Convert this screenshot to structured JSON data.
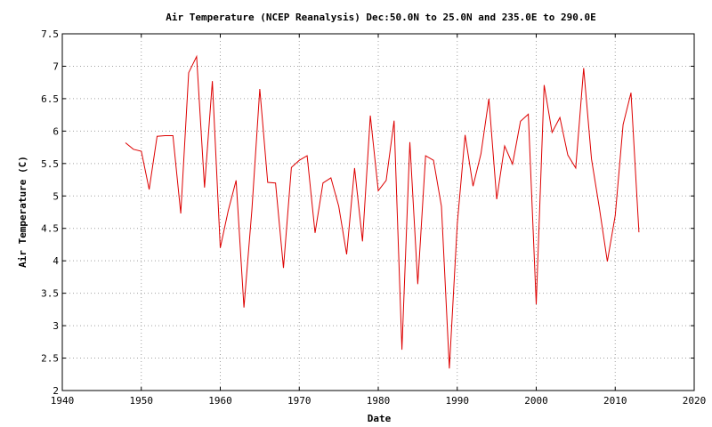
{
  "chart_data": {
    "type": "line",
    "title": "Air Temperature (NCEP Reanalysis) Dec:50.0N to 25.0N and 235.0E to 290.0E",
    "xlabel": "Date",
    "ylabel": "Air Temperature (C)",
    "xlim": [
      1940,
      2020
    ],
    "ylim": [
      2,
      7.5
    ],
    "xticks": [
      1940,
      1950,
      1960,
      1970,
      1980,
      1990,
      2000,
      2010,
      2020
    ],
    "yticks": [
      2,
      2.5,
      3,
      3.5,
      4,
      4.5,
      5,
      5.5,
      6,
      6.5,
      7,
      7.5
    ],
    "ytick_labels": [
      "2",
      "2.5",
      "3",
      "3.5",
      "4",
      "4.5",
      "5",
      "5.5",
      "6",
      "6.5",
      "7",
      "7.5"
    ],
    "grid": true,
    "legend": "none",
    "series": [
      {
        "color": "#dd0000",
        "x": [
          1948,
          1949,
          1950,
          1951,
          1952,
          1953,
          1954,
          1955,
          1956,
          1957,
          1958,
          1959,
          1960,
          1961,
          1962,
          1963,
          1964,
          1965,
          1966,
          1967,
          1968,
          1969,
          1970,
          1971,
          1972,
          1973,
          1974,
          1975,
          1976,
          1977,
          1978,
          1979,
          1980,
          1981,
          1982,
          1983,
          1984,
          1985,
          1986,
          1987,
          1988,
          1989,
          1990,
          1991,
          1992,
          1993,
          1994,
          1995,
          1996,
          1997,
          1998,
          1999,
          2000,
          2001,
          2002,
          2003,
          2004,
          2005,
          2006,
          2007,
          2008,
          2009,
          2010,
          2011,
          2012,
          2013
        ],
        "y": [
          5.82,
          5.72,
          5.69,
          5.1,
          5.92,
          5.93,
          5.93,
          4.73,
          6.9,
          7.15,
          5.13,
          6.77,
          4.2,
          4.77,
          5.24,
          3.28,
          4.78,
          6.65,
          5.21,
          5.2,
          3.89,
          5.44,
          5.55,
          5.62,
          4.43,
          5.2,
          5.28,
          4.84,
          4.1,
          5.43,
          4.3,
          6.24,
          5.08,
          5.24,
          6.16,
          2.63,
          5.83,
          3.64,
          5.62,
          5.55,
          4.84,
          2.34,
          4.57,
          5.94,
          5.15,
          5.65,
          6.5,
          4.95,
          5.77,
          5.49,
          6.15,
          6.26,
          3.33,
          6.71,
          5.98,
          6.21,
          5.63,
          5.43,
          6.97,
          5.57,
          4.81,
          3.99,
          4.7,
          6.1,
          6.59,
          4.44
        ]
      }
    ]
  }
}
